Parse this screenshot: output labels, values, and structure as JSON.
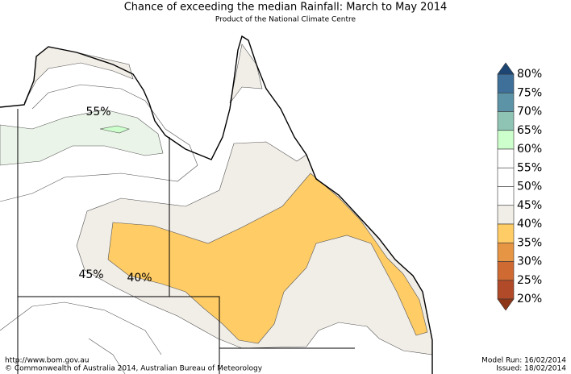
{
  "header": {
    "title": "Chance of exceeding the median Rainfall: March to May 2014",
    "subtitle": "Product of the National Climate Centre"
  },
  "legend": {
    "labels": [
      "80%",
      "75%",
      "70%",
      "65%",
      "60%",
      "55%",
      "50%",
      "45%",
      "40%",
      "35%",
      "30%",
      "25%",
      "20%"
    ],
    "colors": [
      "#3e7099",
      "#5d93a6",
      "#8fc4b4",
      "#ccffcc",
      "#ffffff",
      "#ffffff",
      "#ffffff",
      "#f1ede7",
      "#ffcc66",
      "#e59544",
      "#cf6a33",
      "#b04a28"
    ],
    "top_color": "#1d4675",
    "bottom_color": "#8d3618"
  },
  "contour_labels": [
    "55%",
    "45%",
    "40%"
  ],
  "footer": {
    "url": "http://www.bom.gov.au",
    "copyright": "©  Commonwealth of Australia 2014, Australian Bureau of Meteorology",
    "model_run": "Model Run: 16/02/2014",
    "issued": "Issued: 18/02/2014"
  }
}
